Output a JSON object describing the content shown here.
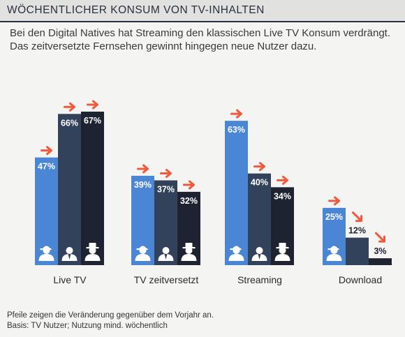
{
  "header": {
    "title": "WÖCHENTLICHER KONSUM VON TV-INHALTEN"
  },
  "subtitle": "Bei den Digital Natives hat Streaming den klassischen Live TV Konsum verdrängt. Das zeitversetzte Fernsehen gewinnt hingegen neue Nutzer dazu.",
  "footnotes": [
    "Pfeile zeigen die Veränderung gegenüber dem Vorjahr an.",
    "Basis: TV Nutzer; Nutzung mind. wöchentlich"
  ],
  "colors": {
    "segment_1": "#4a86d3",
    "segment_2": "#33425b",
    "segment_3": "#1e2331",
    "arrow": "#ef5a3c"
  },
  "icons": [
    "person-cap-icon",
    "person-suit-icon",
    "person-hat-icon"
  ],
  "chart_data": {
    "type": "bar",
    "categories": [
      "Live TV",
      "TV zeitversetzt",
      "Streaming",
      "Download"
    ],
    "series": [
      {
        "values": [
          47,
          39,
          63,
          25
        ],
        "trend": [
          "up",
          "up",
          "up",
          "up"
        ],
        "icon": "person-cap-icon"
      },
      {
        "values": [
          66,
          37,
          40,
          12
        ],
        "trend": [
          "up",
          "up",
          "up",
          "down"
        ],
        "icon": "person-suit-icon"
      },
      {
        "values": [
          67,
          32,
          34,
          3
        ],
        "trend": [
          "up",
          "up",
          "up",
          "down"
        ],
        "icon": "person-hat-icon"
      }
    ],
    "value_suffix": "%",
    "ylim": [
      0,
      67
    ],
    "grid": false,
    "legend": "none"
  }
}
